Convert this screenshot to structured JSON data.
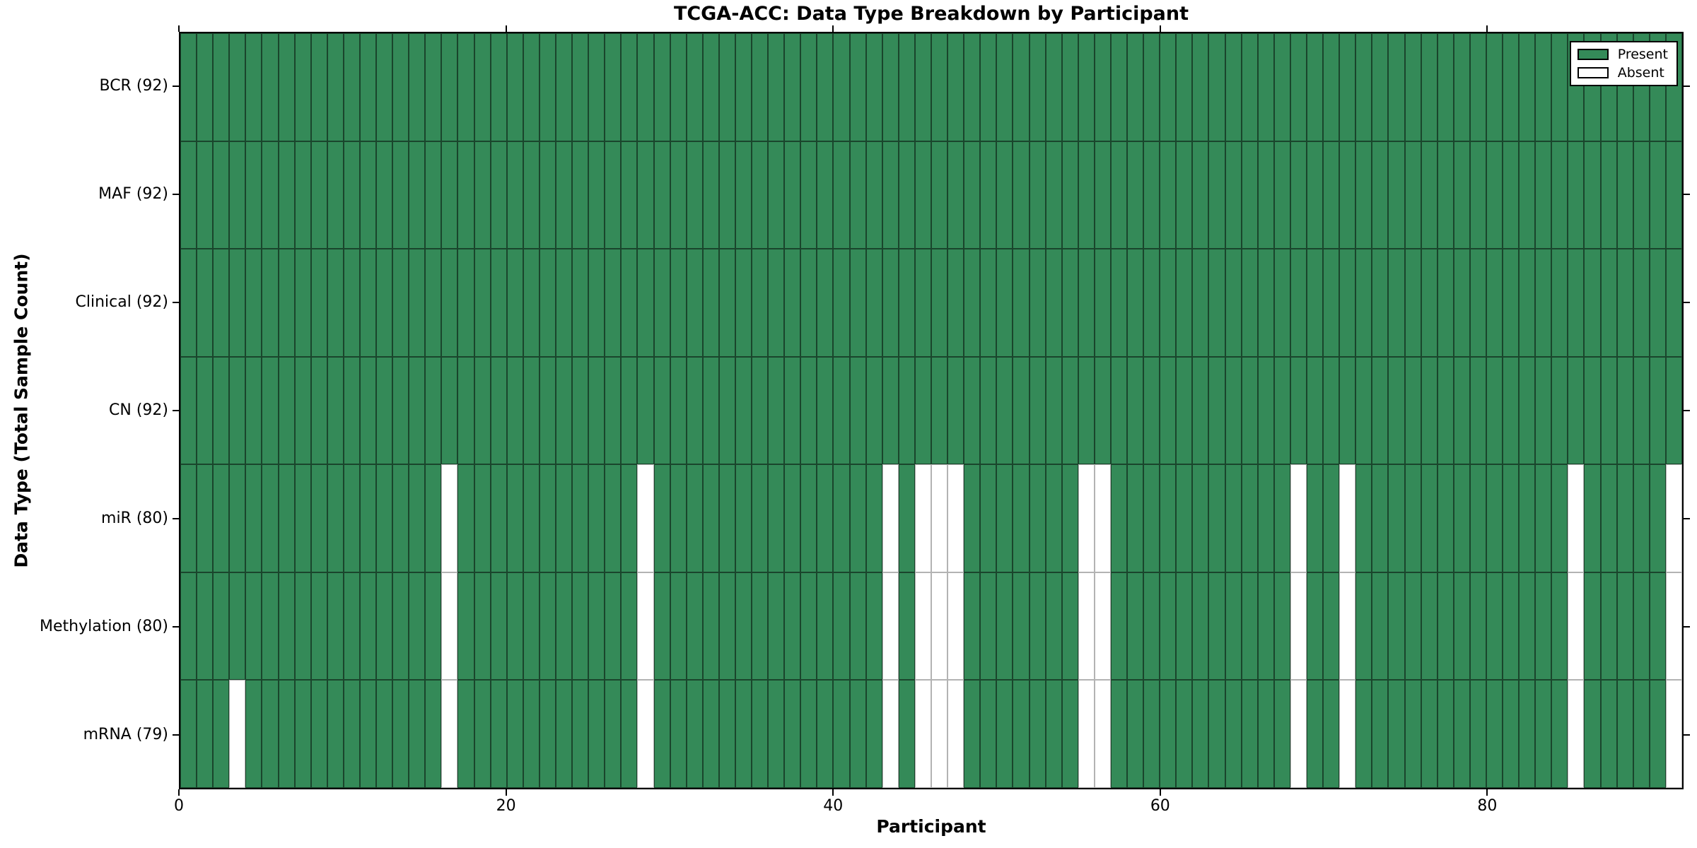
{
  "chart_data": {
    "type": "heatmap",
    "title": "TCGA-ACC: Data Type Breakdown by Participant",
    "xlabel": "Participant",
    "ylabel": "Data Type (Total Sample Count)",
    "n_participants": 92,
    "x_range": [
      0,
      92
    ],
    "xticks": [
      0,
      20,
      40,
      60,
      80
    ],
    "grid": false,
    "legend_position": "upper right",
    "legend": [
      {
        "label": "Present",
        "color": "#348a58"
      },
      {
        "label": "Absent",
        "color": "#ffffff"
      }
    ],
    "colors": {
      "present": "#348a58",
      "absent": "#ffffff",
      "present_edge": "rgba(0,0,0,0.5)",
      "absent_edge": "#b3b3b3"
    },
    "rows": [
      {
        "label": "BCR (92)",
        "data_type": "BCR",
        "present_count": 92,
        "absent_participants": []
      },
      {
        "label": "MAF (92)",
        "data_type": "MAF",
        "present_count": 92,
        "absent_participants": []
      },
      {
        "label": "Clinical (92)",
        "data_type": "Clinical",
        "present_count": 92,
        "absent_participants": []
      },
      {
        "label": "CN (92)",
        "data_type": "CN",
        "present_count": 92,
        "absent_participants": []
      },
      {
        "label": "miR (80)",
        "data_type": "miR",
        "present_count": 80,
        "absent_participants": [
          16,
          28,
          43,
          45,
          46,
          47,
          55,
          56,
          68,
          71,
          85,
          91
        ]
      },
      {
        "label": "Methylation (80)",
        "data_type": "Methylation",
        "present_count": 80,
        "absent_participants": [
          16,
          28,
          43,
          45,
          46,
          47,
          55,
          56,
          68,
          71,
          85,
          91
        ]
      },
      {
        "label": "mRNA (79)",
        "data_type": "mRNA",
        "present_count": 79,
        "absent_participants": [
          3,
          16,
          28,
          43,
          45,
          46,
          47,
          55,
          56,
          68,
          71,
          85,
          91
        ]
      }
    ]
  }
}
